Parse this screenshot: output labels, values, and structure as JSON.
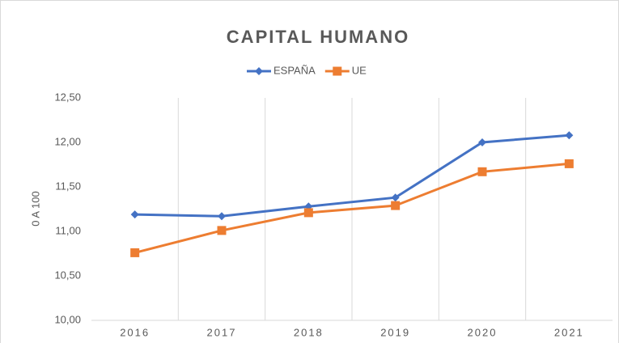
{
  "chart_data": {
    "type": "line",
    "title": "CAPITAL HUMANO",
    "ylabel": "0 A 100",
    "categories": [
      "2016",
      "2017",
      "2018",
      "2019",
      "2020",
      "2021"
    ],
    "series": [
      {
        "name": "ESPAÑA",
        "color": "#4472c4",
        "marker": "diamond",
        "values": [
          11.19,
          11.17,
          11.28,
          11.38,
          12.0,
          12.08
        ]
      },
      {
        "name": "UE",
        "color": "#ed7d31",
        "marker": "square",
        "values": [
          10.76,
          11.01,
          11.21,
          11.29,
          11.67,
          11.76
        ]
      }
    ],
    "ylim": [
      10,
      12.5
    ],
    "yticks": [
      {
        "value": 10,
        "label": "10,00"
      },
      {
        "value": 10.5,
        "label": "10,50"
      },
      {
        "value": 11,
        "label": "11,00"
      },
      {
        "value": 11.5,
        "label": "11,50"
      },
      {
        "value": 12,
        "label": "12,00"
      },
      {
        "value": 12.5,
        "label": "12,50"
      }
    ],
    "legend": "top"
  }
}
